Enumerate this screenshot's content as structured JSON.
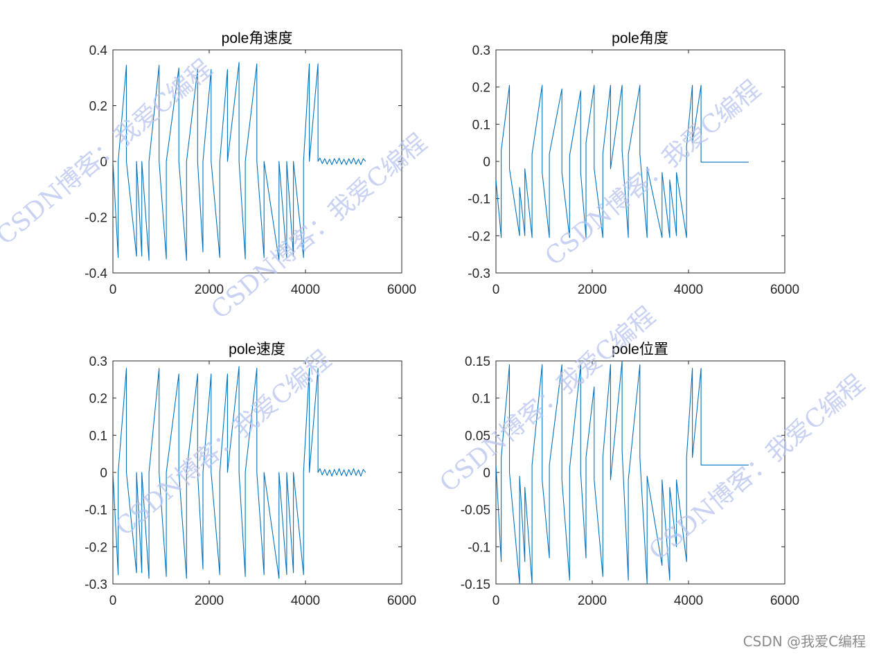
{
  "colors": {
    "line": "#0072BD",
    "axis": "#262626",
    "background": "#ffffff",
    "watermark": "#b7c3ee"
  },
  "watermark": {
    "text": "CSDN博客：我爱C编程"
  },
  "footer": {
    "credit": "CSDN @我爱C编程"
  },
  "chart_data": [
    {
      "type": "line",
      "title": "pole角速度",
      "xlim": [
        0,
        6000
      ],
      "ylim": [
        -0.4,
        0.4
      ],
      "xticks": [
        0,
        2000,
        4000,
        6000
      ],
      "yticks": [
        -0.4,
        -0.2,
        0,
        0.2,
        0.4
      ],
      "ytick_labels": [
        "-0.4",
        "-0.2",
        "0",
        "0.2",
        "0.4"
      ],
      "x": [
        0,
        110,
        110,
        280,
        280,
        490,
        490,
        600,
        600,
        750,
        750,
        960,
        960,
        1110,
        1110,
        1370,
        1370,
        1530,
        1530,
        1760,
        1760,
        1870,
        1870,
        2040,
        2040,
        2220,
        2220,
        2380,
        2380,
        2620,
        2620,
        2750,
        2750,
        2990,
        2990,
        3140,
        3140,
        3450,
        3450,
        3610,
        3610,
        3750,
        3750,
        3960,
        3960,
        4080,
        4080,
        4260,
        4260,
        4300,
        4350,
        4400,
        4450,
        4500,
        4550,
        4600,
        4650,
        4700,
        4750,
        4800,
        4850,
        4900,
        4950,
        5000,
        5050,
        5100,
        5150,
        5200,
        5250
      ],
      "series": [
        {
          "name": "pole角速度",
          "values": [
            0,
            -0.345,
            0,
            0.345,
            0,
            -0.34,
            0,
            -0.34,
            0,
            -0.355,
            0,
            0.345,
            0,
            -0.35,
            0,
            0.335,
            0,
            -0.355,
            0,
            0.33,
            0,
            -0.325,
            0,
            0.33,
            0,
            -0.345,
            0,
            0.33,
            0,
            0.355,
            0,
            -0.35,
            0,
            0.35,
            0,
            -0.345,
            0,
            -0.355,
            0,
            -0.345,
            0,
            -0.34,
            0,
            -0.345,
            0,
            0.35,
            0,
            0.35,
            0,
            0.012,
            -0.008,
            0.01,
            -0.01,
            0.008,
            -0.012,
            0.01,
            -0.008,
            0.012,
            -0.01,
            0.008,
            -0.012,
            0.01,
            -0.008,
            0.012,
            -0.01,
            0.008,
            -0.012,
            0.01,
            0
          ]
        }
      ]
    },
    {
      "type": "line",
      "title": "pole角度",
      "xlim": [
        0,
        6000
      ],
      "ylim": [
        -0.3,
        0.3
      ],
      "xticks": [
        0,
        2000,
        4000,
        6000
      ],
      "yticks": [
        -0.3,
        -0.2,
        -0.1,
        0,
        0.1,
        0.2,
        0.3
      ],
      "ytick_labels": [
        "-0.3",
        "-0.2",
        "-0.1",
        "0",
        "0.1",
        "0.2",
        "0.3"
      ],
      "x": [
        0,
        110,
        110,
        280,
        280,
        490,
        490,
        600,
        600,
        750,
        750,
        960,
        960,
        1110,
        1110,
        1370,
        1370,
        1530,
        1530,
        1760,
        1760,
        1870,
        1870,
        2040,
        2040,
        2220,
        2220,
        2380,
        2380,
        2620,
        2620,
        2750,
        2750,
        2990,
        2990,
        3140,
        3140,
        3450,
        3450,
        3610,
        3610,
        3750,
        3750,
        3960,
        3960,
        4080,
        4080,
        4260,
        4260,
        4400,
        4800,
        5250
      ],
      "series": [
        {
          "name": "pole角度",
          "values": [
            -0.05,
            -0.205,
            0.03,
            0.205,
            -0.02,
            -0.2,
            -0.07,
            -0.2,
            -0.02,
            -0.205,
            0.02,
            0.205,
            -0.03,
            -0.205,
            0.02,
            0.195,
            -0.03,
            -0.205,
            0.015,
            0.19,
            -0.03,
            -0.205,
            0.05,
            0.205,
            -0.02,
            -0.205,
            0.02,
            0.205,
            -0.02,
            0.205,
            0.03,
            -0.205,
            0.02,
            0.205,
            0.02,
            -0.205,
            -0.015,
            -0.205,
            -0.03,
            -0.205,
            -0.05,
            -0.2,
            -0.03,
            -0.205,
            0.04,
            0.205,
            0.05,
            0.205,
            -0.002,
            -0.002,
            -0.002,
            -0.002
          ]
        }
      ]
    },
    {
      "type": "line",
      "title": "pole速度",
      "xlim": [
        0,
        6000
      ],
      "ylim": [
        -0.3,
        0.3
      ],
      "xticks": [
        0,
        2000,
        4000,
        6000
      ],
      "yticks": [
        -0.3,
        -0.2,
        -0.1,
        0,
        0.1,
        0.2,
        0.3
      ],
      "ytick_labels": [
        "-0.3",
        "-0.2",
        "-0.1",
        "0",
        "0.1",
        "0.2",
        "0.3"
      ],
      "x": [
        0,
        110,
        110,
        280,
        280,
        490,
        490,
        600,
        600,
        750,
        750,
        960,
        960,
        1110,
        1110,
        1370,
        1370,
        1530,
        1530,
        1760,
        1760,
        1870,
        1870,
        2040,
        2040,
        2220,
        2220,
        2380,
        2380,
        2620,
        2620,
        2750,
        2750,
        2990,
        2990,
        3140,
        3140,
        3450,
        3450,
        3610,
        3610,
        3750,
        3750,
        3960,
        3960,
        4080,
        4080,
        4260,
        4260,
        4300,
        4350,
        4400,
        4450,
        4500,
        4550,
        4600,
        4650,
        4700,
        4750,
        4800,
        4850,
        4900,
        4950,
        5000,
        5050,
        5100,
        5150,
        5200,
        5250
      ],
      "series": [
        {
          "name": "pole速度",
          "values": [
            0,
            -0.275,
            0,
            0.28,
            0,
            -0.27,
            0,
            -0.27,
            0,
            -0.285,
            0,
            0.28,
            0,
            -0.28,
            0,
            0.265,
            0,
            -0.285,
            0,
            0.265,
            0,
            -0.26,
            0,
            0.265,
            0,
            -0.275,
            0,
            0.265,
            0,
            0.285,
            0,
            -0.28,
            0,
            0.28,
            0,
            -0.275,
            0,
            -0.285,
            0,
            -0.275,
            0,
            -0.27,
            0,
            -0.275,
            0,
            0.28,
            0,
            0.28,
            0,
            0.01,
            -0.007,
            0.008,
            -0.008,
            0.007,
            -0.01,
            0.008,
            -0.007,
            0.01,
            -0.008,
            0.007,
            -0.01,
            0.008,
            -0.007,
            0.01,
            -0.008,
            0.007,
            -0.01,
            0.008,
            0
          ]
        }
      ]
    },
    {
      "type": "line",
      "title": "pole位置",
      "xlim": [
        0,
        6000
      ],
      "ylim": [
        -0.15,
        0.15
      ],
      "xticks": [
        0,
        2000,
        4000,
        6000
      ],
      "yticks": [
        -0.15,
        -0.1,
        -0.05,
        0,
        0.05,
        0.1,
        0.15
      ],
      "ytick_labels": [
        "-0.15",
        "-0.1",
        "-0.05",
        "0",
        "0.05",
        "0.1",
        "0.15"
      ],
      "x": [
        0,
        110,
        110,
        280,
        280,
        490,
        490,
        600,
        600,
        750,
        750,
        960,
        960,
        1110,
        1110,
        1370,
        1370,
        1530,
        1530,
        1760,
        1760,
        1870,
        1870,
        2040,
        2040,
        2220,
        2220,
        2380,
        2380,
        2620,
        2620,
        2750,
        2750,
        2990,
        2990,
        3140,
        3140,
        3450,
        3450,
        3610,
        3610,
        3750,
        3750,
        3960,
        3960,
        4080,
        4080,
        4260,
        4260,
        4400,
        4800,
        5250
      ],
      "series": [
        {
          "name": "pole位置",
          "values": [
            0.01,
            -0.12,
            0.02,
            0.145,
            0.0,
            -0.15,
            -0.005,
            -0.12,
            -0.02,
            -0.15,
            0.01,
            0.145,
            -0.01,
            -0.115,
            0.01,
            0.145,
            -0.01,
            -0.145,
            0.005,
            0.145,
            0.0,
            -0.115,
            0.02,
            0.115,
            -0.01,
            -0.14,
            0.02,
            0.145,
            -0.01,
            0.15,
            0.03,
            -0.145,
            -0.01,
            0.145,
            0.02,
            -0.15,
            -0.005,
            -0.125,
            -0.01,
            -0.145,
            -0.02,
            -0.1,
            -0.01,
            -0.12,
            0.02,
            0.14,
            0.02,
            0.14,
            0.01,
            0.01,
            0.01,
            0.01
          ]
        }
      ]
    }
  ]
}
